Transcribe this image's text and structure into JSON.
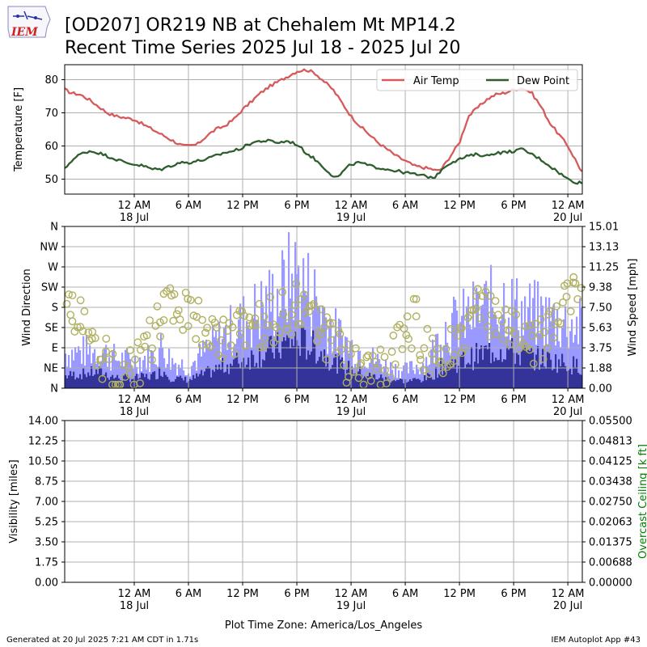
{
  "header": {
    "logo_text": "IEM",
    "title_line1": "[OD207] OR219 NB at Chehalem Mt MP14.2",
    "title_line2": "Recent Time Series 2025 Jul 18 - 2025 Jul 20"
  },
  "footer": {
    "generated": "Generated at 20 Jul 2025 7:21 AM CDT in 1.71s",
    "app": "IEM Autoplot App #43",
    "timezone": "Plot Time Zone: America/Los_Angeles"
  },
  "x_axis": {
    "range_hours": [
      -7.7,
      49.6
    ],
    "ticks": [
      {
        "h": 0,
        "label": "12 AM",
        "date": "18 Jul"
      },
      {
        "h": 6,
        "label": "6 AM",
        "date": ""
      },
      {
        "h": 12,
        "label": "12 PM",
        "date": ""
      },
      {
        "h": 18,
        "label": "6 PM",
        "date": ""
      },
      {
        "h": 24,
        "label": "12 AM",
        "date": "19 Jul"
      },
      {
        "h": 30,
        "label": "6 AM",
        "date": ""
      },
      {
        "h": 36,
        "label": "12 PM",
        "date": ""
      },
      {
        "h": 42,
        "label": "6 PM",
        "date": ""
      },
      {
        "h": 48,
        "label": "12 AM",
        "date": "20 Jul"
      }
    ]
  },
  "chart_data": [
    {
      "type": "line",
      "ylabel": "Temperature [F]",
      "ylim": [
        45.5,
        84.5
      ],
      "yticks": [
        50,
        60,
        70,
        80
      ],
      "grid": true,
      "legend_position": "top-right",
      "series": [
        {
          "name": "Air Temp",
          "color": "#d65a5a",
          "points": [
            [
              -7.7,
              77
            ],
            [
              -7,
              76
            ],
            [
              -6,
              75.5
            ],
            [
              -5,
              74
            ],
            [
              -4,
              72
            ],
            [
              -3,
              70
            ],
            [
              -2,
              69
            ],
            [
              -1,
              68.5
            ],
            [
              0,
              68
            ],
            [
              1,
              66.5
            ],
            [
              2,
              65
            ],
            [
              3,
              63.5
            ],
            [
              4,
              62
            ],
            [
              5,
              60.5
            ],
            [
              5.5,
              60
            ],
            [
              6,
              60
            ],
            [
              7,
              60.5
            ],
            [
              8,
              63
            ],
            [
              9,
              65
            ],
            [
              10,
              66
            ],
            [
              11,
              68
            ],
            [
              12,
              71
            ],
            [
              13,
              73.5
            ],
            [
              14,
              76
            ],
            [
              15,
              78
            ],
            [
              16,
              79.5
            ],
            [
              17,
              81
            ],
            [
              18,
              82.5
            ],
            [
              19,
              83
            ],
            [
              20,
              82
            ],
            [
              21,
              79.5
            ],
            [
              22,
              77
            ],
            [
              23,
              73
            ],
            [
              24,
              69
            ],
            [
              25,
              66
            ],
            [
              26,
              63.5
            ],
            [
              27,
              61
            ],
            [
              28,
              59
            ],
            [
              29,
              57
            ],
            [
              30,
              55.5
            ],
            [
              31,
              54
            ],
            [
              32,
              53.5
            ],
            [
              33,
              53
            ],
            [
              33.5,
              52.5
            ],
            [
              34,
              53
            ],
            [
              35,
              57
            ],
            [
              36,
              61
            ],
            [
              36.5,
              65
            ],
            [
              37,
              69
            ],
            [
              38,
              71.5
            ],
            [
              39,
              74
            ],
            [
              40,
              75.5
            ],
            [
              41,
              76
            ],
            [
              42,
              77
            ],
            [
              43,
              77.5
            ],
            [
              44,
              76
            ],
            [
              45,
              72
            ],
            [
              46,
              67
            ],
            [
              47,
              63.5
            ],
            [
              48,
              60
            ],
            [
              49,
              55
            ],
            [
              49.6,
              52
            ]
          ]
        },
        {
          "name": "Dew Point",
          "color": "#2e5e2e",
          "points": [
            [
              -7.7,
              53
            ],
            [
              -7,
              55.5
            ],
            [
              -6,
              57.5
            ],
            [
              -5,
              58.5
            ],
            [
              -4,
              58
            ],
            [
              -3,
              57
            ],
            [
              -2,
              56
            ],
            [
              -1,
              55
            ],
            [
              0,
              54.5
            ],
            [
              1,
              54
            ],
            [
              2,
              53
            ],
            [
              3,
              53
            ],
            [
              4,
              54
            ],
            [
              5,
              55
            ],
            [
              6,
              55
            ],
            [
              7,
              55.5
            ],
            [
              8,
              56
            ],
            [
              9,
              57
            ],
            [
              10,
              58
            ],
            [
              11,
              58.5
            ],
            [
              12,
              59.5
            ],
            [
              13,
              61
            ],
            [
              14,
              61.5
            ],
            [
              15,
              61.5
            ],
            [
              16,
              61
            ],
            [
              17,
              61.5
            ],
            [
              18,
              60.5
            ],
            [
              19,
              58
            ],
            [
              20,
              56
            ],
            [
              21,
              53.5
            ],
            [
              22,
              51
            ],
            [
              22.5,
              50.5
            ],
            [
              23,
              52
            ],
            [
              24,
              54.5
            ],
            [
              25,
              55
            ],
            [
              26,
              54
            ],
            [
              27,
              53.5
            ],
            [
              28,
              53
            ],
            [
              29,
              52.5
            ],
            [
              30,
              52
            ],
            [
              31,
              51.5
            ],
            [
              32,
              51
            ],
            [
              33,
              50.5
            ],
            [
              33.5,
              51
            ],
            [
              34,
              53
            ],
            [
              35,
              55
            ],
            [
              36,
              56
            ],
            [
              37,
              57
            ],
            [
              38,
              57.5
            ],
            [
              39,
              57
            ],
            [
              40,
              58
            ],
            [
              41,
              58
            ],
            [
              42,
              58.5
            ],
            [
              43,
              59
            ],
            [
              44,
              57.5
            ],
            [
              45,
              56
            ],
            [
              46,
              54
            ],
            [
              47,
              52
            ],
            [
              48,
              50
            ],
            [
              49,
              49
            ],
            [
              49.6,
              49
            ]
          ]
        }
      ]
    },
    {
      "type": "bar+scatter",
      "ylabel": "Wind Direction",
      "ylabel_right": "Wind Speed [mph]",
      "direction_ticks": [
        "N",
        "NE",
        "E",
        "SE",
        "S",
        "SW",
        "W",
        "NW",
        "N"
      ],
      "speed_ticks": [
        "0.00",
        "1.88",
        "3.75",
        "5.63",
        "7.50",
        "9.38",
        "11.25",
        "13.13",
        "15.01"
      ],
      "speed_ylim": [
        0,
        15.01
      ],
      "grid": true,
      "gust_color": "#9999ff",
      "speed_color": "#333399",
      "direction_marker_color": "#b0b060",
      "speed_profile": [
        [
          -7.7,
          1.2
        ],
        [
          -6,
          1.4
        ],
        [
          -4,
          1.6
        ],
        [
          -2,
          1.0
        ],
        [
          0,
          1.0
        ],
        [
          2,
          1.2
        ],
        [
          3,
          1.8
        ],
        [
          4,
          1.0
        ],
        [
          6,
          0.8
        ],
        [
          8,
          1.5
        ],
        [
          10,
          2.2
        ],
        [
          12,
          2.8
        ],
        [
          14,
          3.4
        ],
        [
          16,
          4.0
        ],
        [
          17,
          4.5
        ],
        [
          18,
          4.6
        ],
        [
          19,
          4.3
        ],
        [
          20,
          3.9
        ],
        [
          21,
          3.3
        ],
        [
          22,
          2.6
        ],
        [
          24,
          1.8
        ],
        [
          26,
          1.2
        ],
        [
          28,
          0.9
        ],
        [
          30,
          0.7
        ],
        [
          32,
          0.9
        ],
        [
          33,
          1.3
        ],
        [
          34,
          2.2
        ],
        [
          36,
          2.6
        ],
        [
          38,
          3.2
        ],
        [
          40,
          3.8
        ],
        [
          41,
          3.9
        ],
        [
          42,
          3.4
        ],
        [
          44,
          3.0
        ],
        [
          46,
          2.7
        ],
        [
          48,
          2.4
        ],
        [
          49.6,
          2.0
        ]
      ],
      "gust_profile": [
        [
          -7.7,
          3.6
        ],
        [
          -6,
          3.7
        ],
        [
          -4,
          3.9
        ],
        [
          -2,
          3.0
        ],
        [
          0,
          2.8
        ],
        [
          2,
          3.3
        ],
        [
          3,
          4.3
        ],
        [
          4,
          2.8
        ],
        [
          6,
          2.2
        ],
        [
          8,
          4.0
        ],
        [
          10,
          5.5
        ],
        [
          12,
          6.8
        ],
        [
          14,
          8.2
        ],
        [
          16,
          9.6
        ],
        [
          17,
          11.0
        ],
        [
          18,
          11.5
        ],
        [
          19,
          10.2
        ],
        [
          20,
          9.2
        ],
        [
          21,
          7.6
        ],
        [
          22,
          5.8
        ],
        [
          24,
          4.2
        ],
        [
          26,
          3.2
        ],
        [
          28,
          2.2
        ],
        [
          30,
          1.8
        ],
        [
          32,
          2.6
        ],
        [
          33,
          3.8
        ],
        [
          34,
          6.0
        ],
        [
          36,
          6.8
        ],
        [
          38,
          7.9
        ],
        [
          40,
          8.8
        ],
        [
          41,
          9.2
        ],
        [
          42,
          8.1
        ],
        [
          44,
          7.6
        ],
        [
          46,
          7.1
        ],
        [
          48,
          6.6
        ],
        [
          49.6,
          6.2
        ]
      ],
      "direction_profile": [
        [
          -7.7,
          205
        ],
        [
          -7,
          185
        ],
        [
          -6,
          150
        ],
        [
          -5,
          120
        ],
        [
          -4,
          95
        ],
        [
          -3,
          60
        ],
        [
          -2,
          35
        ],
        [
          -1,
          30
        ],
        [
          0,
          40
        ],
        [
          1,
          75
        ],
        [
          2,
          110
        ],
        [
          3,
          150
        ],
        [
          4,
          175
        ],
        [
          5,
          180
        ],
        [
          6,
          172
        ],
        [
          7,
          145
        ],
        [
          8,
          130
        ],
        [
          9,
          125
        ],
        [
          10,
          120
        ],
        [
          11,
          115
        ],
        [
          12,
          120
        ],
        [
          13,
          130
        ],
        [
          14,
          140
        ],
        [
          15,
          150
        ],
        [
          16,
          160
        ],
        [
          17,
          170
        ],
        [
          18,
          180
        ],
        [
          19,
          170
        ],
        [
          20,
          150
        ],
        [
          21,
          125
        ],
        [
          22,
          95
        ],
        [
          23,
          70
        ],
        [
          24,
          50
        ],
        [
          25,
          40
        ],
        [
          26,
          35
        ],
        [
          27,
          45
        ],
        [
          28,
          60
        ],
        [
          29,
          80
        ],
        [
          30,
          110
        ],
        [
          31,
          150
        ],
        [
          32,
          95
        ],
        [
          33,
          60
        ],
        [
          34,
          75
        ],
        [
          35,
          95
        ],
        [
          36,
          120
        ],
        [
          37,
          150
        ],
        [
          38,
          170
        ],
        [
          39,
          160
        ],
        [
          40,
          145
        ],
        [
          41,
          130
        ],
        [
          42,
          120
        ],
        [
          43,
          105
        ],
        [
          44,
          95
        ],
        [
          45,
          110
        ],
        [
          46,
          140
        ],
        [
          47,
          175
        ],
        [
          48,
          205
        ],
        [
          49,
          230
        ],
        [
          49.6,
          225
        ]
      ]
    },
    {
      "type": "line",
      "ylabel": "Visibility [miles]",
      "ylabel_right": "Overcast Ceiling [k ft]",
      "visibility_ticks": [
        "0.00",
        "1.75",
        "3.50",
        "5.25",
        "7.00",
        "8.75",
        "10.50",
        "12.25",
        "14.00"
      ],
      "ceiling_ticks": [
        "0.00000",
        "0.00688",
        "0.01375",
        "0.02063",
        "0.02750",
        "0.03438",
        "0.04125",
        "0.04813",
        "0.05500"
      ],
      "ylim": [
        0,
        14
      ],
      "ylim_right": [
        0,
        0.055
      ],
      "grid": true,
      "right_label_color": "#008000",
      "series": []
    }
  ]
}
